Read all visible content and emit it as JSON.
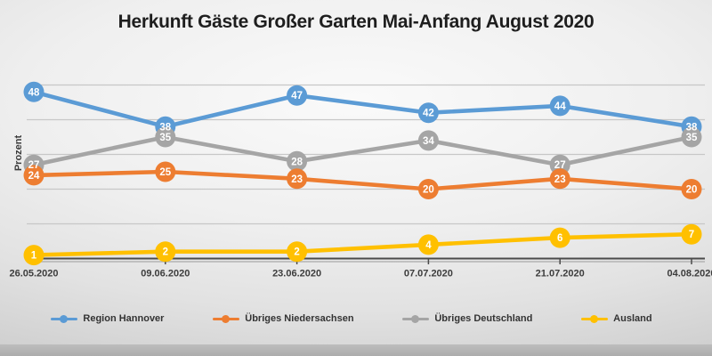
{
  "title": "Herkunft Gäste Großer Garten Mai-Anfang August 2020",
  "chart_data": {
    "type": "line",
    "title": "Herkunft Gäste Großer Garten Mai-Anfang August 2020",
    "ylabel": "Prozent",
    "xlabel": "",
    "categories": [
      "26.05.2020",
      "09.06.2020",
      "23.06.2020",
      "07.07.2020",
      "21.07.2020",
      "04.08.2020"
    ],
    "series": [
      {
        "name": "Region Hannover",
        "color": "#5B9BD5",
        "values": [
          48,
          38,
          47,
          42,
          44,
          38
        ]
      },
      {
        "name": "Übriges Niedersachsen",
        "color": "#ED7D31",
        "values": [
          24,
          25,
          23,
          20,
          23,
          20
        ]
      },
      {
        "name": "Übriges Deutschland",
        "color": "#A5A5A5",
        "values": [
          27,
          35,
          28,
          34,
          27,
          35
        ]
      },
      {
        "name": "Ausland",
        "color": "#FFC000",
        "values": [
          1,
          2,
          2,
          4,
          6,
          7
        ]
      }
    ],
    "ylim": [
      0,
      50
    ],
    "grid_step": 10,
    "grid": true,
    "legend_position": "bottom",
    "data_labels": "center",
    "axis_color": "#4a4a4a",
    "gridline_color": "#c7c7c7",
    "label_text_color": "#ffffff",
    "tick_label_color": "#3c3c3c"
  }
}
